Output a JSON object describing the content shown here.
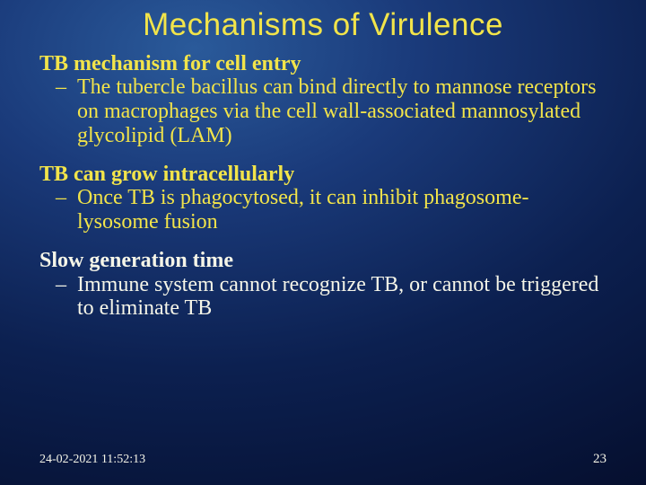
{
  "colors": {
    "title": "#f2e44a",
    "body": "#f5f5e8",
    "footer": "#f5f5e8",
    "bg_center": "#2a5a9a",
    "bg_edge": "#030a25"
  },
  "typography": {
    "title_fontsize": 35,
    "body_fontsize": 24,
    "footer_fontsize": 14,
    "title_family": "Gill Sans",
    "body_family": "Georgia"
  },
  "title": "Mechanisms of Virulence",
  "sections": [
    {
      "head": "TB mechanism for cell entry",
      "sub": "The tubercle bacillus can bind directly to mannose receptors on macrophages via the cell wall-associated mannosylated glycolipid (LAM)"
    },
    {
      "head": "TB can grow intracellularly",
      "sub": "Once TB is phagocytosed, it can inhibit phagosome-lysosome fusion"
    },
    {
      "head": "Slow generation time",
      "sub": "Immune system cannot recognize TB, or cannot be triggered to eliminate TB"
    }
  ],
  "footer": {
    "timestamp": "24-02-2021 11:52:13",
    "page": "23"
  }
}
